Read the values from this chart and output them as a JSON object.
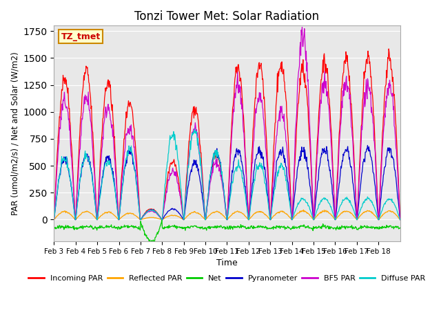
{
  "title": "Tonzi Tower Met: Solar Radiation",
  "ylabel": "PAR (umol/m2/s) / Net and Solar (W/m2)",
  "xlabel": "Time",
  "label_box": "TZ_tmet",
  "ylim": [
    -200,
    1800
  ],
  "background_color": "#e8e8e8",
  "series": {
    "incoming_par": {
      "label": "Incoming PAR",
      "color": "#ff0000"
    },
    "reflected_par": {
      "label": "Reflected PAR",
      "color": "#ffa500"
    },
    "net": {
      "label": "Net",
      "color": "#00cc00"
    },
    "pyranometer": {
      "label": "Pyranometer",
      "color": "#0000cc"
    },
    "bf5_par": {
      "label": "BF5 PAR",
      "color": "#cc00cc"
    },
    "diffuse_par": {
      "label": "Diffuse PAR",
      "color": "#00cccc"
    }
  },
  "xtick_labels": [
    "Feb 3",
    "Feb 4",
    "Feb 5",
    "Feb 6",
    "Feb 7",
    "Feb 8",
    "Feb 9",
    "Feb 10",
    "Feb 11",
    "Feb 12",
    "Feb 13",
    "Feb 14",
    "Feb 15",
    "Feb 16",
    "Feb 17",
    "Feb 18"
  ],
  "n_days": 16,
  "pts_per_day": 48
}
